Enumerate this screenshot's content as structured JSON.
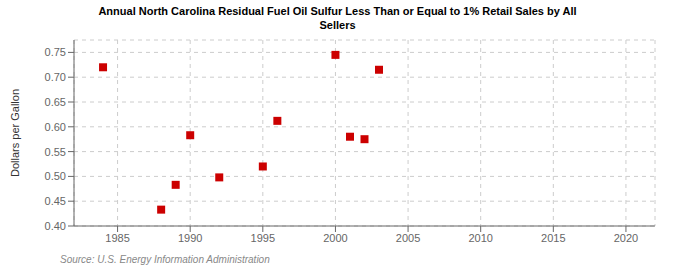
{
  "chart_data": {
    "type": "scatter",
    "title": "Annual North Carolina Residual Fuel Oil Sulfur Less Than or Equal to 1% Retail Sales by All\nSellers",
    "ylabel": "Dollars per Gallon",
    "source": "Source: U.S. Energy Information Administration",
    "x": [
      1984,
      1988,
      1989,
      1990,
      1992,
      1995,
      1996,
      2000,
      2001,
      2002,
      2003
    ],
    "values": [
      0.72,
      0.433,
      0.483,
      0.583,
      0.498,
      0.52,
      0.612,
      0.745,
      0.58,
      0.575,
      0.715
    ],
    "color": "#cc0000",
    "marker": "square",
    "xlim": [
      1982,
      2022
    ],
    "ylim": [
      0.4,
      0.775
    ],
    "xticks": [
      1985,
      1990,
      1995,
      2000,
      2005,
      2010,
      2015,
      2020
    ],
    "yticks": [
      {
        "value": 0.4,
        "label": "0.40"
      },
      0.45,
      {
        "value": 0.5,
        "label": "0.50"
      },
      0.55,
      {
        "value": 0.6,
        "label": "0.60"
      },
      0.65,
      {
        "value": 0.7,
        "label": "0.70"
      },
      0.75
    ],
    "grid": true
  }
}
